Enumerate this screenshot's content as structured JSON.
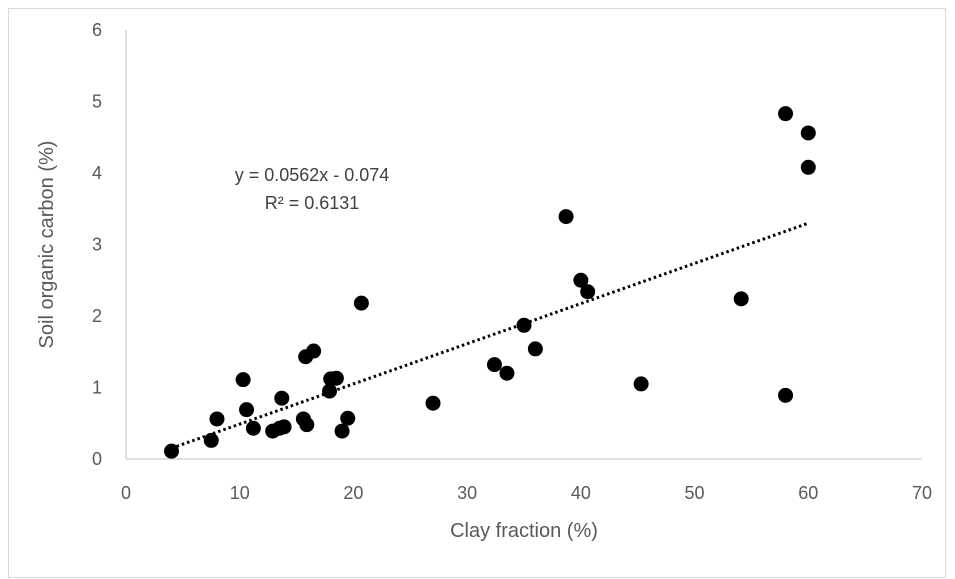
{
  "chart_data": {
    "type": "scatter",
    "title": "",
    "xlabel": "Clay fraction (%)",
    "ylabel": "Soil organic carbon (%)",
    "xlim": [
      0,
      70
    ],
    "ylim": [
      0,
      6
    ],
    "xticks": [
      "0",
      "10",
      "20",
      "30",
      "40",
      "50",
      "60",
      "70"
    ],
    "yticks": [
      "0",
      "1",
      "2",
      "3",
      "4",
      "5",
      "6"
    ],
    "grid": false,
    "legend": "none",
    "marker_color": "#000000",
    "trendline": {
      "type": "linear",
      "slope": 0.0562,
      "intercept": -0.074,
      "x_range": [
        4,
        60
      ],
      "style": "dotted",
      "equation_label": "y = 0.0562x - 0.074",
      "r2_label": "R² = 0.6131"
    },
    "points": [
      {
        "x": 4.0,
        "y": 0.11
      },
      {
        "x": 7.5,
        "y": 0.26
      },
      {
        "x": 8.0,
        "y": 0.56
      },
      {
        "x": 10.3,
        "y": 1.11
      },
      {
        "x": 10.6,
        "y": 0.69
      },
      {
        "x": 11.2,
        "y": 0.43
      },
      {
        "x": 12.9,
        "y": 0.39
      },
      {
        "x": 13.5,
        "y": 0.43
      },
      {
        "x": 13.7,
        "y": 0.85
      },
      {
        "x": 13.9,
        "y": 0.45
      },
      {
        "x": 15.6,
        "y": 0.56
      },
      {
        "x": 15.8,
        "y": 1.43
      },
      {
        "x": 15.9,
        "y": 0.48
      },
      {
        "x": 16.5,
        "y": 1.51
      },
      {
        "x": 17.9,
        "y": 0.95
      },
      {
        "x": 18.0,
        "y": 1.12
      },
      {
        "x": 18.5,
        "y": 1.13
      },
      {
        "x": 19.0,
        "y": 0.39
      },
      {
        "x": 19.5,
        "y": 0.57
      },
      {
        "x": 20.7,
        "y": 2.18
      },
      {
        "x": 27.0,
        "y": 0.78
      },
      {
        "x": 32.4,
        "y": 1.32
      },
      {
        "x": 33.5,
        "y": 1.2
      },
      {
        "x": 35.0,
        "y": 1.87
      },
      {
        "x": 36.0,
        "y": 1.54
      },
      {
        "x": 38.7,
        "y": 3.39
      },
      {
        "x": 40.0,
        "y": 2.5
      },
      {
        "x": 40.6,
        "y": 2.34
      },
      {
        "x": 45.3,
        "y": 1.05
      },
      {
        "x": 54.1,
        "y": 2.24
      },
      {
        "x": 58.0,
        "y": 4.83
      },
      {
        "x": 58.0,
        "y": 0.89
      },
      {
        "x": 60.0,
        "y": 4.56
      },
      {
        "x": 60.0,
        "y": 4.08
      }
    ]
  }
}
